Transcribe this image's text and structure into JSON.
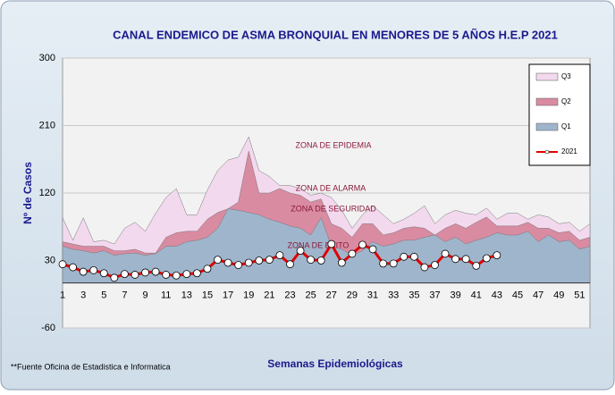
{
  "chart_data": {
    "type": "area",
    "title": "CANAL  ENDEMICO DE ASMA BRONQUIAL EN MENORES DE 5 AÑOS  H.E.P 2021",
    "y_label": "Nº de Casos",
    "x_label": "Semanas Epidemiológicas",
    "source": "**Fuente Oficina de Estadistica e Informatica",
    "annotations": [
      "ZONA DE EPIDEMIA",
      "ZONA DE ALARMA",
      "ZONA DE SEGURIDAD",
      "ZONA DE EXITO"
    ],
    "categories": [
      1,
      null,
      3,
      null,
      5,
      null,
      7,
      null,
      9,
      null,
      11,
      null,
      13,
      null,
      15,
      null,
      17,
      null,
      19,
      null,
      21,
      null,
      23,
      null,
      25,
      null,
      27,
      null,
      29,
      null,
      31,
      null,
      33,
      null,
      35,
      null,
      37,
      null,
      39,
      null,
      41,
      null,
      43,
      null,
      45,
      null,
      47,
      null,
      49,
      null,
      51,
      null
    ],
    "ylim": [
      -60,
      300
    ],
    "yticks": [
      -60,
      30,
      120,
      210,
      300
    ],
    "grid": true,
    "legend": "upper right",
    "series": [
      {
        "name": "Q3",
        "color": "#f3d9ee",
        "values": [
          87,
          57,
          87,
          55,
          57,
          52,
          73,
          81,
          69,
          93,
          114,
          126,
          91,
          91,
          124,
          150,
          164,
          168,
          195,
          150,
          142,
          130,
          130,
          126,
          117,
          120,
          114,
          97,
          73,
          91,
          103,
          91,
          79,
          85,
          93,
          103,
          79,
          91,
          97,
          93,
          91,
          100,
          85,
          93,
          93,
          85,
          91,
          88,
          79,
          81,
          69,
          79
        ]
      },
      {
        "name": "Q2",
        "color": "#d98ba1",
        "values": [
          55,
          52,
          49,
          49,
          49,
          43,
          43,
          45,
          40,
          40,
          61,
          67,
          69,
          69,
          85,
          94,
          99,
          108,
          176,
          120,
          120,
          126,
          120,
          117,
          108,
          112,
          79,
          73,
          61,
          79,
          79,
          64,
          67,
          73,
          75,
          73,
          64,
          73,
          79,
          73,
          81,
          88,
          76,
          76,
          76,
          81,
          73,
          73,
          67,
          69,
          57,
          61
        ]
      },
      {
        "name": "Q1",
        "color": "#9fb5cc",
        "values": [
          49,
          45,
          43,
          40,
          43,
          37,
          39,
          40,
          37,
          39,
          49,
          49,
          55,
          57,
          61,
          73,
          99,
          97,
          94,
          91,
          85,
          81,
          76,
          73,
          64,
          87,
          49,
          45,
          37,
          43,
          55,
          49,
          52,
          57,
          57,
          61,
          64,
          55,
          61,
          52,
          57,
          61,
          67,
          64,
          64,
          69,
          55,
          64,
          55,
          57,
          45,
          49
        ]
      },
      {
        "name": "2021",
        "color": "#e00000",
        "type": "line",
        "values": [
          25,
          21,
          15,
          17,
          13,
          7,
          12,
          11,
          14,
          15,
          11,
          10,
          12,
          13,
          19,
          31,
          27,
          24,
          27,
          30,
          31,
          37,
          25,
          43,
          31,
          30,
          52,
          27,
          39,
          51,
          45,
          26,
          26,
          35,
          35,
          21,
          24,
          39,
          32,
          32,
          23,
          33,
          37,
          null,
          null,
          null,
          null,
          null,
          null,
          null,
          null,
          null
        ]
      }
    ]
  }
}
